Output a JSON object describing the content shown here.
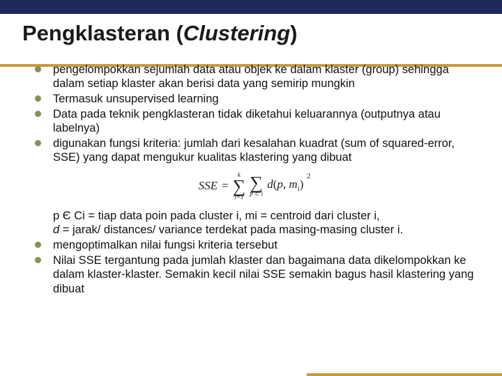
{
  "colors": {
    "topbar": "#1f2a5a",
    "accent": "#c79a3a",
    "bullet": "#8a8f57",
    "text": "#111111",
    "background": "#ffffff"
  },
  "title": {
    "main": "Pengklasteran ",
    "paren_open": "(",
    "italic": "Clustering",
    "paren_close": ")"
  },
  "bullets_top": [
    "pengelompokkan sejumlah data atau objek ke dalam klaster (group) sehingga dalam setiap klaster akan berisi data yang semirip mungkin",
    "Termasuk unsupervised learning",
    "Data pada teknik pengklasteran tidak diketahui keluarannya (outputnya atau labelnya)",
    "digunakan fungsi kriteria: jumlah dari kesalahan kuadrat (sum of squared-error, SSE) yang dapat mengukur kualitas klastering yang dibuat"
  ],
  "formula": {
    "lhs": "SSE",
    "eq": "=",
    "sum1_top": "k",
    "sum1_bottom": "i=1",
    "sum2_top": "",
    "sum2_bottom": "p ⊂ i",
    "dfn": "d",
    "open": "(",
    "arg1": "p",
    "comma": ", ",
    "arg2_m": "m",
    "arg2_sub": "i",
    "close": ")",
    "exp": "2"
  },
  "after_formula": {
    "line1_a": "p Є Ci = tiap data poin pada cluster i, mi = centroid dari cluster i,",
    "line1_b_ital": "d",
    "line1_c": " = jarak/ distances/ variance terdekat pada masing-masing cluster i."
  },
  "bullets_bottom": [
    "mengoptimalkan nilai fungsi kriteria tersebut",
    "Nilai SSE tergantung pada jumlah klaster dan bagaimana data dikelompokkan ke dalam klaster-klaster. Semakin kecil nilai SSE semakin bagus hasil klastering yang dibuat"
  ]
}
